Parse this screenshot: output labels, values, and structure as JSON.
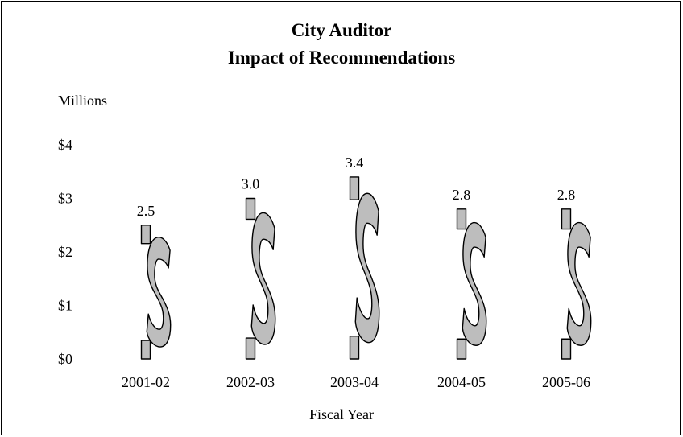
{
  "chart_data": {
    "type": "bar",
    "title": "City Auditor",
    "subtitle": "Impact of Recommendations",
    "ylabel": "Millions",
    "xlabel": "Fiscal Year",
    "categories": [
      "2001-02",
      "2002-03",
      "2003-04",
      "2004-05",
      "2005-06"
    ],
    "values": [
      2.5,
      3.0,
      3.4,
      2.8,
      2.8
    ],
    "data_labels": [
      "2.5",
      "3.0",
      "3.4",
      "2.8",
      "2.8"
    ],
    "ylim": [
      0,
      4
    ],
    "yticks": [
      0,
      1,
      2,
      3,
      4
    ],
    "ytick_labels": [
      "$0",
      "$1",
      "$2",
      "$3",
      "$4"
    ],
    "mark": "dollar-sign",
    "grid": false,
    "colors": {
      "fill": "#bdbdbd",
      "stroke": "#000000"
    }
  }
}
